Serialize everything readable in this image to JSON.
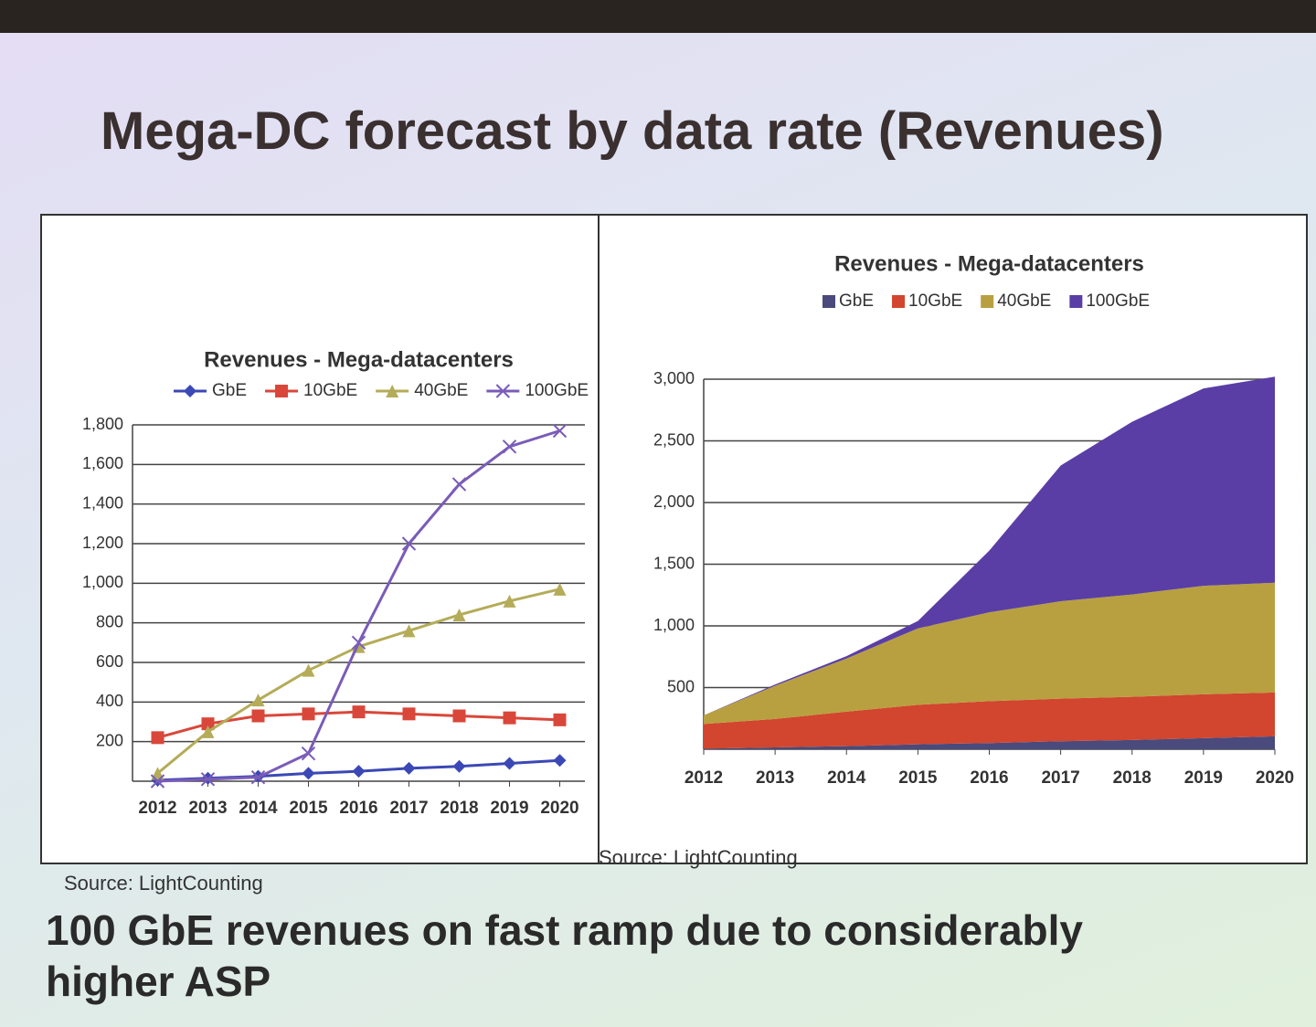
{
  "title": "Mega-DC forecast by data rate (Revenues)",
  "caption": "100 GbE revenues on fast ramp due to considerably higher ASP",
  "chart_data": [
    {
      "type": "line",
      "title": "Revenues - Mega-datacenters",
      "source": "Source: LightCounting",
      "categories": [
        "2012",
        "2013",
        "2014",
        "2015",
        "2016",
        "2017",
        "2018",
        "2019",
        "2020"
      ],
      "series": [
        {
          "name": "GbE",
          "color": "#3b48b5",
          "marker": "diamond",
          "values": [
            5,
            15,
            25,
            40,
            50,
            65,
            75,
            90,
            105
          ]
        },
        {
          "name": "10GbE",
          "color": "#d9473a",
          "marker": "square",
          "values": [
            220,
            290,
            330,
            340,
            350,
            340,
            330,
            320,
            310
          ]
        },
        {
          "name": "40GbE",
          "color": "#b4ac58",
          "marker": "triangle",
          "values": [
            40,
            250,
            410,
            560,
            680,
            760,
            840,
            910,
            970
          ]
        },
        {
          "name": "100GbE",
          "color": "#7a5cb8",
          "marker": "x",
          "values": [
            0,
            10,
            20,
            140,
            700,
            1200,
            1500,
            1690,
            1770
          ]
        }
      ],
      "ylim": [
        0,
        1800
      ],
      "yticks": [
        200,
        400,
        600,
        800,
        {
          "value": 1000,
          "label": "1,000"
        },
        {
          "value": 1200,
          "label": "1,200"
        },
        {
          "value": 1400,
          "label": "1,400"
        },
        {
          "value": 1600,
          "label": "1,600"
        },
        {
          "value": 1800,
          "label": "1,800"
        }
      ],
      "grid": true,
      "legend": "top"
    },
    {
      "type": "area",
      "title": "Revenues - Mega-datacenters",
      "source": "Source: LightCounting",
      "stacked": true,
      "categories": [
        "2012",
        "2013",
        "2014",
        "2015",
        "2016",
        "2017",
        "2018",
        "2019",
        "2020"
      ],
      "series": [
        {
          "name": "GbE",
          "color": "#4a4a7c",
          "values": [
            5,
            15,
            25,
            40,
            50,
            65,
            75,
            90,
            105
          ]
        },
        {
          "name": "10GbE",
          "color": "#d2452e",
          "values": [
            200,
            230,
            280,
            320,
            340,
            345,
            350,
            355,
            355
          ]
        },
        {
          "name": "40GbE",
          "color": "#b8a040",
          "values": [
            70,
            270,
            430,
            620,
            720,
            790,
            830,
            880,
            890
          ]
        },
        {
          "name": "100GbE",
          "color": "#5a3ea6",
          "values": [
            0,
            10,
            20,
            60,
            500,
            1100,
            1400,
            1600,
            1670
          ]
        }
      ],
      "ylim": [
        0,
        3000
      ],
      "yticks": [
        500,
        {
          "value": 1000,
          "label": "1,000"
        },
        {
          "value": 1500,
          "label": "1,500"
        },
        {
          "value": 2000,
          "label": "2,000"
        },
        {
          "value": 2500,
          "label": "2,500"
        },
        {
          "value": 3000,
          "label": "3,000"
        }
      ],
      "grid": true,
      "legend": "top"
    }
  ]
}
